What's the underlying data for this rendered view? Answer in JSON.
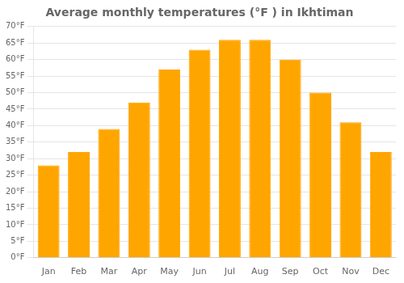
{
  "chart_data": {
    "type": "bar",
    "title": "Average monthly temperatures (°F ) in Ikhtiman",
    "categories": [
      "Jan",
      "Feb",
      "Mar",
      "Apr",
      "May",
      "Jun",
      "Jul",
      "Aug",
      "Sep",
      "Oct",
      "Nov",
      "Dec"
    ],
    "values": [
      28,
      32,
      39,
      47,
      57,
      63,
      66,
      66,
      60,
      50,
      41,
      32
    ],
    "color": "#FFA500",
    "ylim": [
      0,
      70
    ],
    "yticks": [
      {
        "value": 0,
        "label": "0°F"
      },
      {
        "value": 5,
        "label": "5°F"
      },
      {
        "value": 10,
        "label": "10°F"
      },
      {
        "value": 15,
        "label": "15°F"
      },
      {
        "value": 20,
        "label": "20°F"
      },
      {
        "value": 25,
        "label": "25°F"
      },
      {
        "value": 30,
        "label": "30°F"
      },
      {
        "value": 35,
        "label": "35°F"
      },
      {
        "value": 40,
        "label": "40°F"
      },
      {
        "value": 45,
        "label": "45°F"
      },
      {
        "value": 50,
        "label": "50°F"
      },
      {
        "value": 55,
        "label": "55°F"
      },
      {
        "value": 60,
        "label": "60°F"
      },
      {
        "value": 65,
        "label": "65°F"
      },
      {
        "value": 70,
        "label": "70°F"
      }
    ],
    "grid": true
  }
}
